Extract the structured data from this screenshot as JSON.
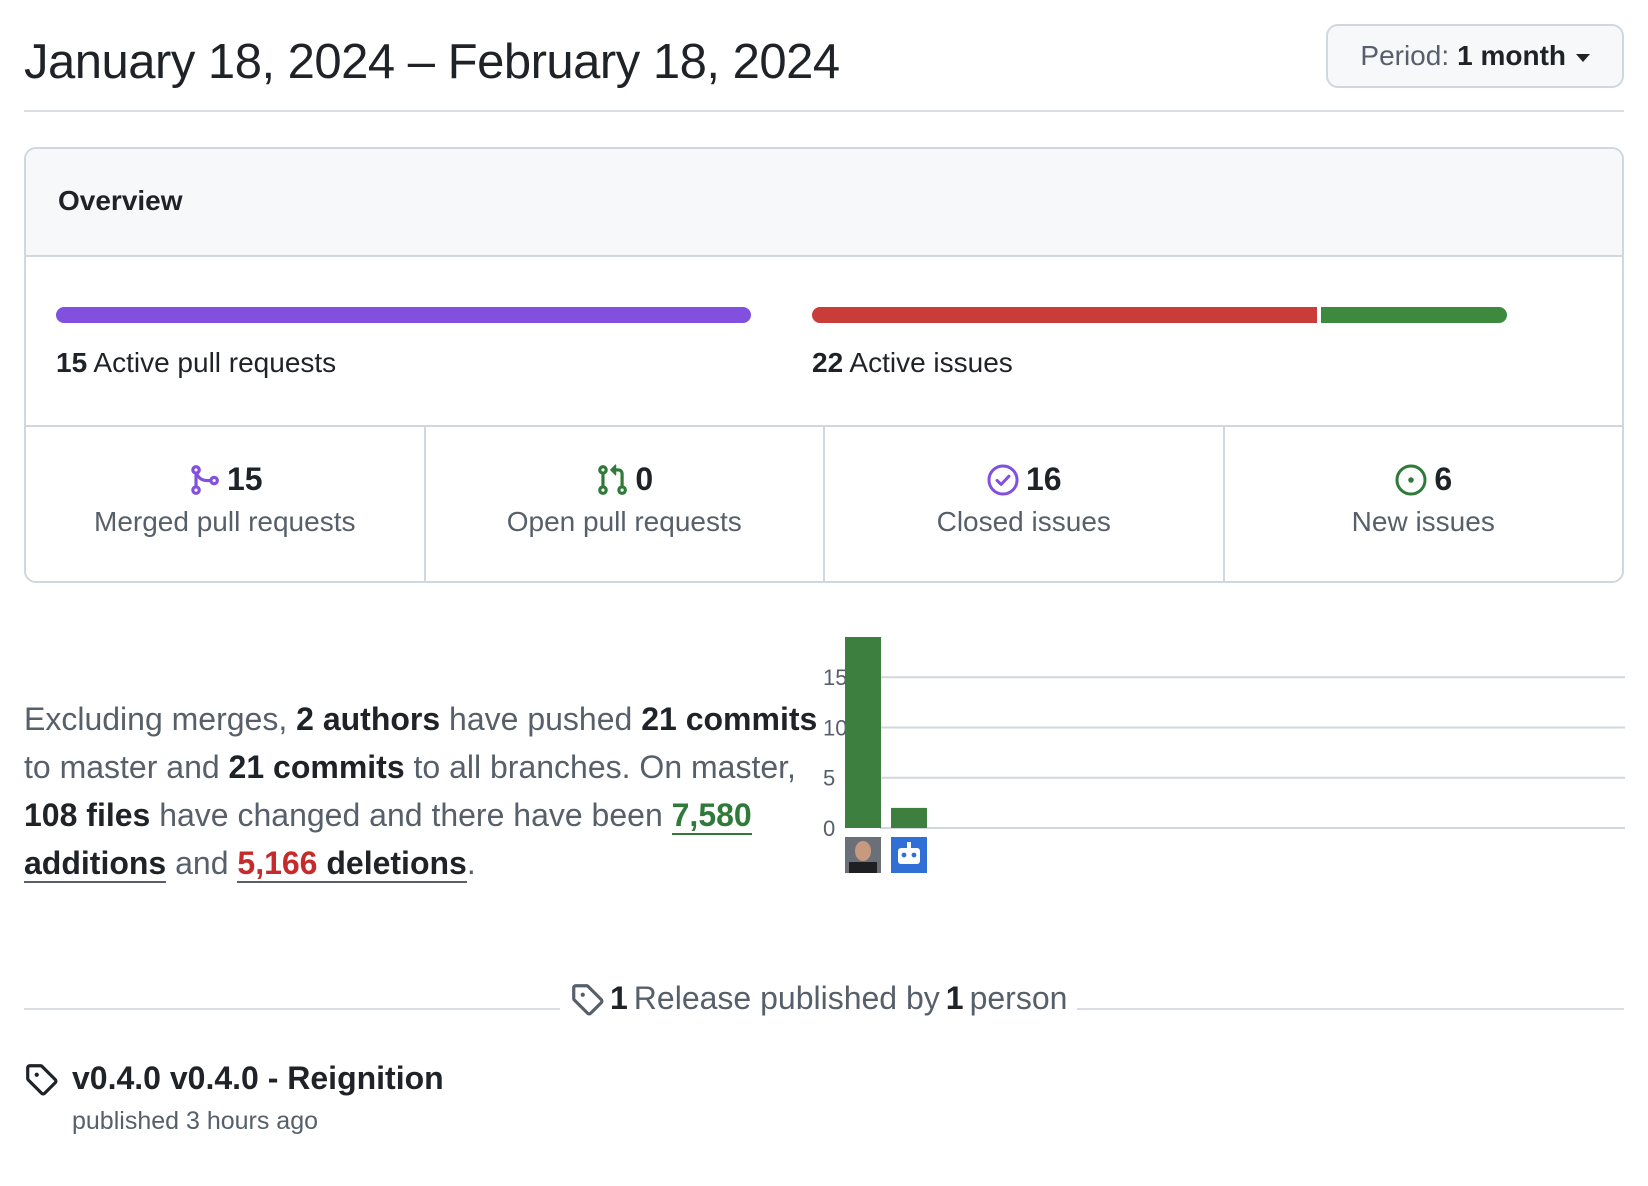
{
  "header": {
    "date_range": "January 18, 2024 – February 18, 2024",
    "period_label": "Period:",
    "period_value": "1 month"
  },
  "overview": {
    "title": "Overview",
    "pull_requests": {
      "count": "15",
      "label": "Active pull requests",
      "merged_fraction": 1.0,
      "color": "#8250df"
    },
    "issues": {
      "count": "22",
      "label": "Active issues",
      "closed_fraction": 0.727,
      "open_fraction": 0.273,
      "closed_color": "#c93c37",
      "open_color": "#3d8a3f"
    },
    "stats": [
      {
        "icon": "git-merge-icon",
        "count": "15",
        "label": "Merged pull requests",
        "color": "#8250df"
      },
      {
        "icon": "git-pull-request-icon",
        "count": "0",
        "label": "Open pull requests",
        "color": "#2f7a39"
      },
      {
        "icon": "issue-closed-icon",
        "count": "16",
        "label": "Closed issues",
        "color": "#8250df"
      },
      {
        "icon": "issue-opened-icon",
        "count": "6",
        "label": "New issues",
        "color": "#2f7a39"
      }
    ]
  },
  "summary": {
    "p1": "Excluding merges, ",
    "authors": "2 authors",
    "p2": " have pushed ",
    "commits_master": "21 commits",
    "p3": " to master and ",
    "commits_all": "21 commits",
    "p4": " to all branches. On master, ",
    "files": "108 files",
    "p5": " have changed and there have been ",
    "additions_num": "7,580",
    "additions_word": "additions",
    "p6": " and ",
    "deletions_num": "5,166",
    "deletions_word": "deletions",
    "p7": "."
  },
  "chart_data": {
    "type": "bar",
    "categories": [
      "author-1",
      "bot"
    ],
    "values": [
      19,
      2
    ],
    "yticks": [
      0,
      5,
      10,
      15
    ],
    "ylim": [
      0,
      19
    ],
    "bar_color": "#3d7f3e"
  },
  "releases": {
    "count": "1",
    "text_mid": "Release published by",
    "people": "1",
    "text_end": "person",
    "items": [
      {
        "title": "v0.4.0 v0.4.0 - Reignition",
        "subtitle": "published 3 hours ago"
      }
    ]
  }
}
